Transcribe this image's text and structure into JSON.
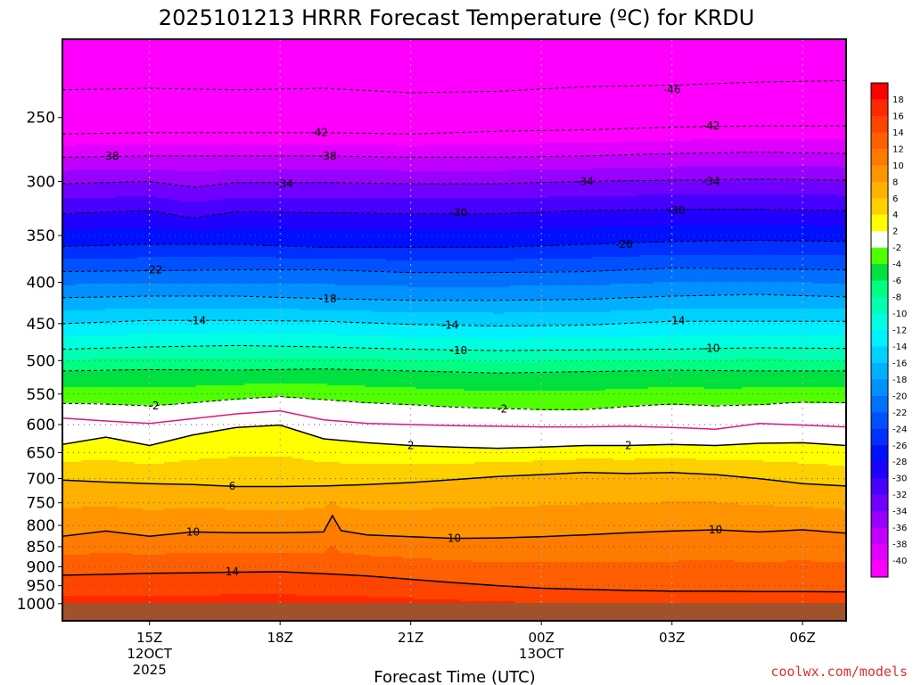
{
  "title": "2025101213 HRRR Forecast Temperature (ºC) for KRDU",
  "credit": "coolwx.com/models",
  "colors": {
    "ground": "#a0522d",
    "freezing_line": "#e0157a",
    "contour": "#000000"
  },
  "chart_data": {
    "type": "contour",
    "title": "2025101213 HRRR Forecast Temperature (ºC) for KRDU",
    "xlabel": "Forecast Time (UTC)",
    "ylabel": "",
    "y_axis": "pressure (hPa), log scale, decreasing upward",
    "xlim_hours_utc": [
      "2025-10-12 13Z",
      "2025-10-13 07Z"
    ],
    "ylim": [
      1050,
      200
    ],
    "x_ticks": [
      {
        "label": "15Z",
        "sub": "12OCT",
        "sub2": "2025",
        "hour": 15
      },
      {
        "label": "18Z",
        "sub": "",
        "sub2": "",
        "hour": 18
      },
      {
        "label": "21Z",
        "sub": "",
        "sub2": "",
        "hour": 21
      },
      {
        "label": "00Z",
        "sub": "13OCT",
        "sub2": "",
        "hour": 24
      },
      {
        "label": "03Z",
        "sub": "",
        "sub2": "",
        "hour": 27
      },
      {
        "label": "06Z",
        "sub": "",
        "sub2": "",
        "hour": 30
      }
    ],
    "y_ticks": [
      250,
      300,
      350,
      400,
      450,
      500,
      550,
      600,
      650,
      700,
      750,
      800,
      850,
      900,
      950,
      1000
    ],
    "grid": true,
    "legend": "right",
    "colorbar": {
      "ticks": [
        18,
        16,
        14,
        12,
        10,
        8,
        6,
        4,
        2,
        -2,
        -4,
        -6,
        -8,
        -10,
        -12,
        -14,
        -16,
        -18,
        -20,
        -22,
        -24,
        -26,
        -28,
        -30,
        -32,
        -34,
        -36,
        -38,
        -40
      ],
      "bands": [
        {
          "lo": 18,
          "hi": 99,
          "color": "#ff0000"
        },
        {
          "lo": 16,
          "hi": 18,
          "color": "#ff2800"
        },
        {
          "lo": 14,
          "hi": 16,
          "color": "#ff4400"
        },
        {
          "lo": 12,
          "hi": 14,
          "color": "#ff5f00"
        },
        {
          "lo": 10,
          "hi": 12,
          "color": "#ff7a00"
        },
        {
          "lo": 8,
          "hi": 10,
          "color": "#ff9400"
        },
        {
          "lo": 6,
          "hi": 8,
          "color": "#ffb000"
        },
        {
          "lo": 4,
          "hi": 6,
          "color": "#ffd000"
        },
        {
          "lo": 2,
          "hi": 4,
          "color": "#ffff00"
        },
        {
          "lo": -2,
          "hi": 2,
          "color": "#ffffff"
        },
        {
          "lo": -4,
          "hi": -2,
          "color": "#50ff00"
        },
        {
          "lo": -6,
          "hi": -4,
          "color": "#00e040"
        },
        {
          "lo": -8,
          "hi": -6,
          "color": "#00ff80"
        },
        {
          "lo": -10,
          "hi": -8,
          "color": "#00ffb0"
        },
        {
          "lo": -12,
          "hi": -10,
          "color": "#00ffe0"
        },
        {
          "lo": -14,
          "hi": -12,
          "color": "#00f0ff"
        },
        {
          "lo": -16,
          "hi": -14,
          "color": "#00d0ff"
        },
        {
          "lo": -18,
          "hi": -16,
          "color": "#00b0ff"
        },
        {
          "lo": -20,
          "hi": -18,
          "color": "#0090ff"
        },
        {
          "lo": -22,
          "hi": -20,
          "color": "#0070ff"
        },
        {
          "lo": -24,
          "hi": -22,
          "color": "#0050ff"
        },
        {
          "lo": -26,
          "hi": -24,
          "color": "#0030ff"
        },
        {
          "lo": -28,
          "hi": -26,
          "color": "#0010ff"
        },
        {
          "lo": -30,
          "hi": -28,
          "color": "#2000ff"
        },
        {
          "lo": -32,
          "hi": -30,
          "color": "#4800ff"
        },
        {
          "lo": -34,
          "hi": -32,
          "color": "#7000ff"
        },
        {
          "lo": -36,
          "hi": -34,
          "color": "#9800ff"
        },
        {
          "lo": -38,
          "hi": -36,
          "color": "#c000ff"
        },
        {
          "lo": -40,
          "hi": -38,
          "color": "#e000ff"
        },
        {
          "lo": -99,
          "hi": -40,
          "color": "#ff00ff"
        }
      ]
    },
    "isotherm_levels_hpa": [
      {
        "t": 14,
        "x": [
          13,
          14,
          15,
          16,
          17,
          18,
          19,
          20,
          21,
          22,
          23,
          24,
          25,
          26,
          27,
          28,
          29,
          30,
          31
        ],
        "p": [
          922,
          920,
          917,
          916,
          914,
          913,
          918,
          924,
          933,
          942,
          950,
          957,
          960,
          963,
          965,
          965,
          966,
          966,
          967
        ]
      },
      {
        "t": 10,
        "x": [
          13,
          14,
          15,
          16,
          17,
          18,
          19,
          19.2,
          19.4,
          20,
          21,
          22,
          23,
          24,
          25,
          26,
          27,
          28,
          29,
          30,
          31
        ],
        "p": [
          825,
          813,
          825,
          815,
          817,
          817,
          815,
          778,
          812,
          822,
          826,
          830,
          829,
          826,
          822,
          817,
          813,
          810,
          815,
          810,
          818
        ]
      },
      {
        "t": 6,
        "x": [
          13,
          14,
          15,
          16,
          17,
          18,
          19,
          20,
          21,
          22,
          23,
          24,
          25,
          26,
          27,
          28,
          29,
          30,
          31
        ],
        "p": [
          703,
          707,
          710,
          712,
          716,
          716,
          715,
          712,
          708,
          702,
          696,
          692,
          688,
          690,
          688,
          692,
          700,
          710,
          715
        ]
      },
      {
        "t": 2,
        "x": [
          13,
          14,
          15,
          16,
          17,
          18,
          19,
          20,
          21,
          22,
          23,
          24,
          25,
          26,
          27,
          28,
          29,
          30,
          31
        ],
        "p": [
          635,
          622,
          637,
          618,
          605,
          601,
          625,
          632,
          637,
          640,
          642,
          640,
          637,
          637,
          635,
          637,
          633,
          632,
          637
        ]
      },
      {
        "t": 0,
        "x": [
          13,
          14,
          15,
          16,
          17,
          18,
          19,
          20,
          21,
          22,
          23,
          24,
          25,
          26,
          27,
          28,
          29,
          30,
          31
        ],
        "p": [
          589,
          594,
          598,
          590,
          582,
          577,
          592,
          598,
          600,
          602,
          603,
          604,
          604,
          603,
          605,
          608,
          598,
          601,
          604
        ]
      },
      {
        "t": -2,
        "x": [
          13,
          14,
          15,
          16,
          17,
          18,
          19,
          20,
          21,
          22,
          23,
          24,
          25,
          26,
          27,
          28,
          29,
          30,
          31
        ],
        "p": [
          565,
          566,
          569,
          564,
          558,
          554,
          559,
          564,
          567,
          571,
          573,
          575,
          575,
          570,
          566,
          569,
          567,
          563,
          564
        ]
      },
      {
        "t": -6,
        "x": [
          13,
          15,
          17,
          19,
          21,
          23,
          25,
          27,
          29,
          31
        ],
        "p": [
          515,
          513,
          514,
          512,
          515,
          518,
          516,
          514,
          515,
          515
        ]
      },
      {
        "t": -10,
        "x": [
          13,
          15,
          17,
          19,
          21,
          23,
          25,
          27,
          29,
          31
        ],
        "p": [
          484,
          481,
          479,
          481,
          484,
          486,
          485,
          484,
          482,
          483
        ]
      },
      {
        "t": -14,
        "x": [
          13,
          15,
          17,
          19,
          21,
          23,
          25,
          27,
          29,
          31
        ],
        "p": [
          450,
          446,
          446,
          447,
          451,
          453,
          452,
          447,
          447,
          447
        ]
      },
      {
        "t": -18,
        "x": [
          13,
          15,
          17,
          19,
          21,
          23,
          25,
          27,
          29,
          31
        ],
        "p": [
          418,
          416,
          416,
          419,
          421,
          421,
          420,
          416,
          414,
          417
        ]
      },
      {
        "t": -22,
        "x": [
          13,
          15,
          17,
          19,
          21,
          23,
          25,
          27,
          29,
          31
        ],
        "p": [
          388,
          387,
          386,
          386,
          389,
          389,
          388,
          384,
          385,
          386
        ]
      },
      {
        "t": -26,
        "x": [
          13,
          15,
          17,
          19,
          21,
          23,
          25,
          27,
          29,
          31
        ],
        "p": [
          361,
          359,
          359,
          362,
          362,
          362,
          359,
          356,
          355,
          356
        ]
      },
      {
        "t": -30,
        "x": [
          13,
          15,
          16,
          17,
          19,
          21,
          23,
          25,
          27,
          29,
          31
        ],
        "p": [
          329,
          326,
          333,
          327,
          328,
          329,
          329,
          326,
          325,
          325,
          326
        ]
      },
      {
        "t": -34,
        "x": [
          13,
          15,
          16,
          17,
          19,
          21,
          23,
          25,
          27,
          29,
          31
        ],
        "p": [
          302,
          300,
          305,
          301,
          301,
          302,
          302,
          300,
          299,
          298,
          299
        ]
      },
      {
        "t": -38,
        "x": [
          13,
          15,
          17,
          19,
          21,
          23,
          25,
          27,
          29,
          31
        ],
        "p": [
          280,
          279,
          279,
          279,
          280,
          280,
          279,
          277,
          276,
          277
        ]
      },
      {
        "t": -42,
        "x": [
          13,
          15,
          17,
          19,
          21,
          23,
          25,
          27,
          29,
          31
        ],
        "p": [
          262,
          261,
          261,
          261,
          262,
          260,
          259,
          257,
          256,
          256
        ]
      },
      {
        "t": -46,
        "x": [
          13,
          15,
          17,
          19,
          21,
          23,
          25,
          27,
          29,
          31
        ],
        "p": [
          231,
          230,
          231,
          230,
          233,
          232,
          229,
          228,
          226,
          225
        ]
      }
    ],
    "contour_labels": [
      {
        "text": "-46",
        "x": 27.0,
        "p": 231
      },
      {
        "text": "-42",
        "x": 18.9,
        "p": 261
      },
      {
        "text": "-42",
        "x": 27.9,
        "p": 256
      },
      {
        "text": "-38",
        "x": 14.1,
        "p": 279
      },
      {
        "text": "-38",
        "x": 19.1,
        "p": 279
      },
      {
        "text": "-34",
        "x": 18.1,
        "p": 302
      },
      {
        "text": "-34",
        "x": 25.0,
        "p": 300
      },
      {
        "text": "-34",
        "x": 27.9,
        "p": 300
      },
      {
        "text": "-30",
        "x": 22.1,
        "p": 328
      },
      {
        "text": "-30",
        "x": 27.1,
        "p": 326
      },
      {
        "text": "-26",
        "x": 25.9,
        "p": 359
      },
      {
        "text": "-22",
        "x": 15.1,
        "p": 386
      },
      {
        "text": "-18",
        "x": 19.1,
        "p": 419
      },
      {
        "text": "-14",
        "x": 16.1,
        "p": 446
      },
      {
        "text": "-14",
        "x": 21.9,
        "p": 452
      },
      {
        "text": "-14",
        "x": 27.1,
        "p": 446
      },
      {
        "text": "-10",
        "x": 22.1,
        "p": 486
      },
      {
        "text": "-10",
        "x": 27.9,
        "p": 483
      },
      {
        "text": "-2",
        "x": 15.1,
        "p": 569
      },
      {
        "text": "-2",
        "x": 23.1,
        "p": 574
      },
      {
        "text": "2",
        "x": 21.0,
        "p": 637
      },
      {
        "text": "2",
        "x": 26.0,
        "p": 637
      },
      {
        "text": "6",
        "x": 16.9,
        "p": 715
      },
      {
        "text": "10",
        "x": 16.0,
        "p": 815
      },
      {
        "text": "10",
        "x": 22.0,
        "p": 830
      },
      {
        "text": "10",
        "x": 28.0,
        "p": 810
      },
      {
        "text": "14",
        "x": 16.9,
        "p": 913
      }
    ],
    "surface_pressure_hpa": 998
  }
}
